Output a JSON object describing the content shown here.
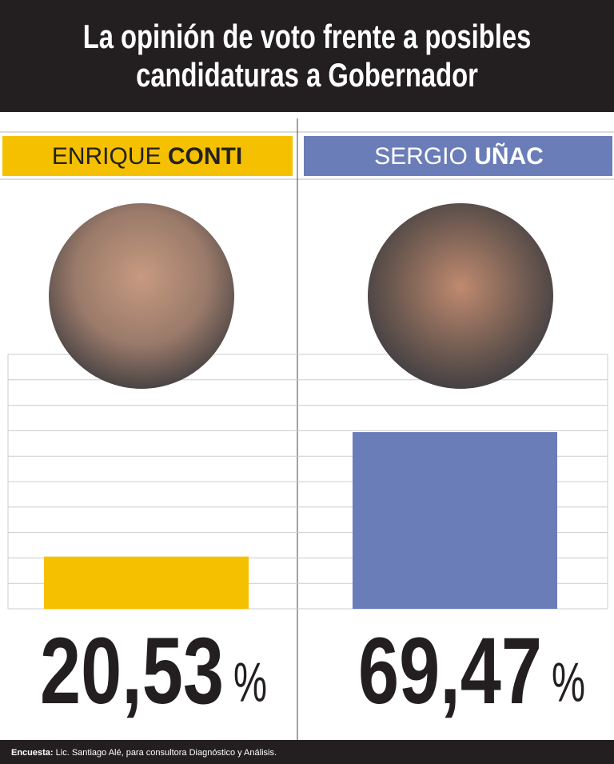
{
  "chart_data": {
    "type": "bar",
    "title": "La opinión de voto frente a posibles candidaturas a Gobernador",
    "categories": [
      [
        "ENRIQUE",
        "CONTI"
      ],
      [
        "SERGIO",
        "UÑAC"
      ]
    ],
    "values": [
      20.53,
      69.47
    ],
    "value_labels": [
      "20,53",
      "69,47"
    ],
    "value_unit": "%",
    "colors": [
      "#f5c000",
      "#6a7db8"
    ],
    "ylim": [
      0,
      100
    ],
    "yticks": [
      0,
      10,
      20,
      30,
      40,
      50,
      60,
      70,
      80,
      90,
      100
    ],
    "grid": true,
    "footer": {
      "label": "Encuesta:",
      "text": "Lic. Santiago Alé, para consultora Diagnóstico y Análisis."
    }
  }
}
